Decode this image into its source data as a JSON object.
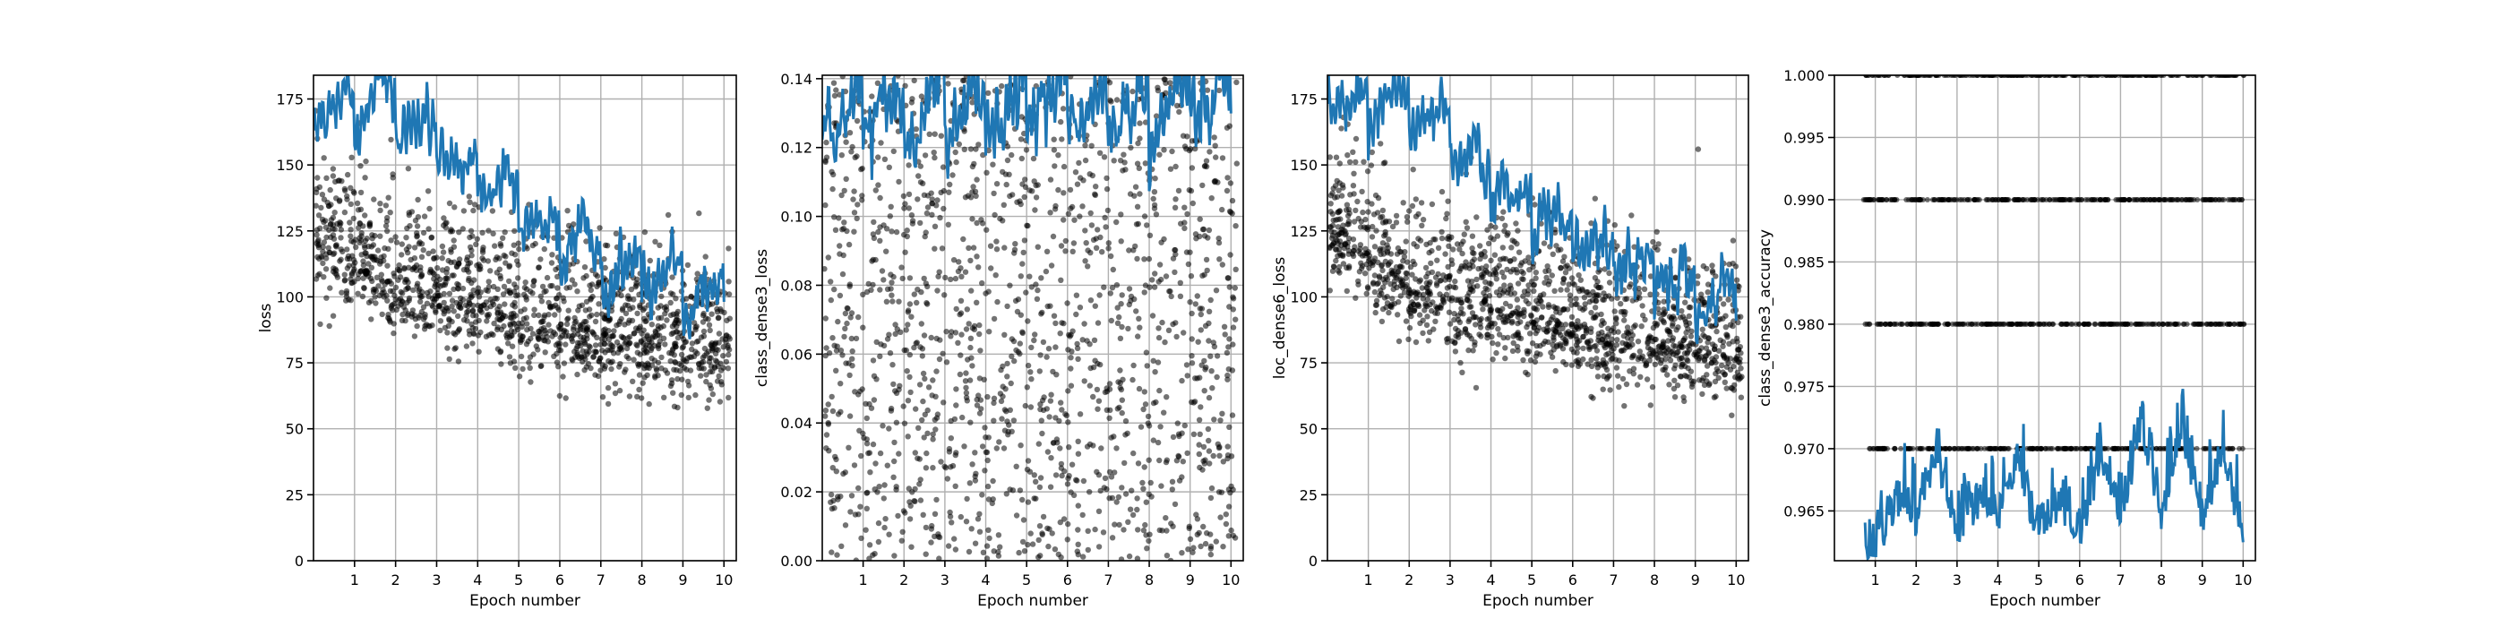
{
  "figure": {
    "xlabel": "Epoch number"
  },
  "colors": {
    "scatter": "#000000",
    "line": "#1f77b4",
    "grid": "#b0b0b0",
    "axes": "#000000"
  },
  "chart_data": [
    {
      "type": "scatter",
      "ylabel": "loss",
      "xlabel": "Epoch number",
      "xlim": [
        0,
        10.3
      ],
      "ylim": [
        0,
        184
      ],
      "xticks": [
        1,
        2,
        3,
        4,
        5,
        6,
        7,
        8,
        9,
        10
      ],
      "yticks": [
        0,
        25,
        50,
        75,
        100,
        125,
        150,
        175
      ],
      "ytick_labels": [
        "0",
        "25",
        "50",
        "75",
        "100",
        "125",
        "150",
        "175"
      ],
      "grid": true,
      "scatter_trend": [
        [
          0,
          125
        ],
        [
          2,
          105
        ],
        [
          4,
          97
        ],
        [
          6,
          90
        ],
        [
          8,
          85
        ],
        [
          10,
          82
        ]
      ],
      "scatter_spread": 22,
      "line_points": [
        [
          0,
          178
        ],
        [
          0.5,
          172
        ],
        [
          1,
          170
        ],
        [
          1.5,
          180
        ],
        [
          2,
          168
        ],
        [
          2.5,
          166
        ],
        [
          3,
          158
        ],
        [
          3.5,
          150
        ],
        [
          4,
          145
        ],
        [
          4.5,
          140
        ],
        [
          5,
          135
        ],
        [
          5.5,
          128
        ],
        [
          6,
          124
        ],
        [
          6.5,
          120
        ],
        [
          7,
          115
        ],
        [
          7.5,
          110
        ],
        [
          8,
          108
        ],
        [
          8.5,
          104
        ],
        [
          9,
          103
        ],
        [
          9.5,
          100
        ],
        [
          10,
          95
        ]
      ],
      "line_amp": 22
    },
    {
      "type": "scatter",
      "ylabel": "class_dense3_loss",
      "xlabel": "Epoch number",
      "xlim": [
        0,
        10.3
      ],
      "ylim": [
        0,
        0.141
      ],
      "xticks": [
        1,
        2,
        3,
        4,
        5,
        6,
        7,
        8,
        9,
        10
      ],
      "yticks": [
        0,
        0.02,
        0.04,
        0.06,
        0.08,
        0.1,
        0.12,
        0.14
      ],
      "ytick_labels": [
        "0.00",
        "0.02",
        "0.04",
        "0.06",
        "0.08",
        "0.10",
        "0.12",
        "0.14"
      ],
      "grid": true,
      "scatter_trend": [
        [
          0,
          0.07
        ],
        [
          10,
          0.07
        ]
      ],
      "scatter_spread": 0.07,
      "line_points": [
        [
          0,
          0.128
        ],
        [
          2,
          0.13
        ],
        [
          4,
          0.131
        ],
        [
          6,
          0.132
        ],
        [
          8,
          0.131
        ],
        [
          10,
          0.133
        ]
      ],
      "line_amp": 0.022
    },
    {
      "type": "scatter",
      "ylabel": "loc_dense6_loss",
      "xlabel": "Epoch number",
      "xlim": [
        0,
        10.3
      ],
      "ylim": [
        0,
        184
      ],
      "xticks": [
        1,
        2,
        3,
        4,
        5,
        6,
        7,
        8,
        9,
        10
      ],
      "yticks": [
        0,
        25,
        50,
        75,
        100,
        125,
        150,
        175
      ],
      "ytick_labels": [
        "0",
        "25",
        "50",
        "75",
        "100",
        "125",
        "150",
        "175"
      ],
      "grid": true,
      "scatter_trend": [
        [
          0,
          125
        ],
        [
          2,
          105
        ],
        [
          4,
          97
        ],
        [
          6,
          90
        ],
        [
          8,
          85
        ],
        [
          10,
          82
        ]
      ],
      "scatter_spread": 22,
      "line_points": [
        [
          0,
          178
        ],
        [
          0.5,
          172
        ],
        [
          1,
          170
        ],
        [
          1.5,
          180
        ],
        [
          2,
          168
        ],
        [
          2.5,
          166
        ],
        [
          3,
          158
        ],
        [
          3.5,
          150
        ],
        [
          4,
          145
        ],
        [
          4.5,
          140
        ],
        [
          5,
          135
        ],
        [
          5.5,
          128
        ],
        [
          6,
          124
        ],
        [
          6.5,
          120
        ],
        [
          7,
          115
        ],
        [
          7.5,
          110
        ],
        [
          8,
          108
        ],
        [
          8.5,
          104
        ],
        [
          9,
          103
        ],
        [
          9.5,
          100
        ],
        [
          10,
          95
        ]
      ],
      "line_amp": 22
    },
    {
      "type": "scatter",
      "ylabel": "class_dense3_accuracy",
      "xlabel": "Epoch number",
      "xlim": [
        0,
        10.3
      ],
      "ylim": [
        0.961,
        1.0
      ],
      "xticks": [
        1,
        2,
        3,
        4,
        5,
        6,
        7,
        8,
        9,
        10
      ],
      "yticks": [
        0.965,
        0.97,
        0.975,
        0.98,
        0.985,
        0.99,
        0.995,
        1.0
      ],
      "ytick_labels": [
        "0.965",
        "0.970",
        "0.975",
        "0.980",
        "0.985",
        "0.990",
        "0.995",
        "1.000"
      ],
      "grid": true,
      "scatter_levels": [
        0.97,
        0.98,
        0.99,
        1.0
      ],
      "line_points": [
        [
          0.75,
          0.961
        ],
        [
          1.5,
          0.964
        ],
        [
          2,
          0.97
        ],
        [
          3.5,
          0.964
        ],
        [
          4,
          0.97
        ],
        [
          5.5,
          0.964
        ],
        [
          7,
          0.97
        ],
        [
          8,
          0.972
        ],
        [
          10,
          0.967
        ]
      ],
      "line_amp": 0.003
    }
  ]
}
